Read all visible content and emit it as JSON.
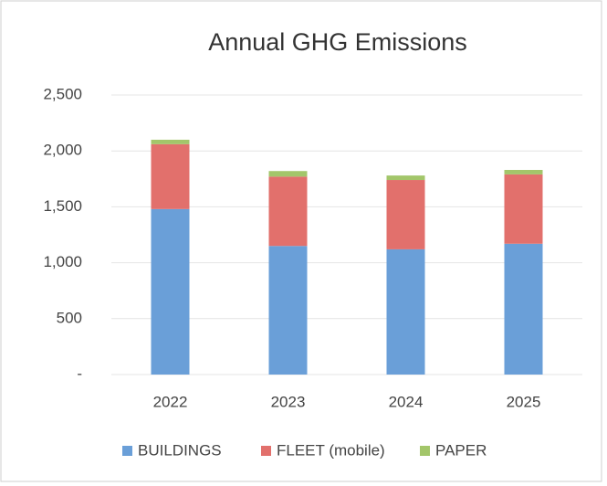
{
  "chart_data": {
    "type": "stacked_bar",
    "title": "Annual GHG Emissions",
    "categories": [
      "2022",
      "2023",
      "2024",
      "2025"
    ],
    "series": [
      {
        "name": "BUILDINGS",
        "color": "#6a9fd8",
        "values": [
          1480,
          1150,
          1120,
          1170
        ]
      },
      {
        "name": "FLEET (mobile)",
        "color": "#e2706c",
        "values": [
          580,
          620,
          620,
          620
        ]
      },
      {
        "name": "PAPER",
        "color": "#a3c66a",
        "values": [
          40,
          50,
          40,
          40
        ]
      }
    ],
    "ylim": [
      0,
      2500
    ],
    "yticks": [
      {
        "value": 0,
        "label": "-"
      },
      {
        "value": 500,
        "label": "500"
      },
      {
        "value": 1000,
        "label": "1,000"
      },
      {
        "value": 1500,
        "label": "1,500"
      },
      {
        "value": 2000,
        "label": "2,000"
      },
      {
        "value": 2500,
        "label": "2,500"
      }
    ],
    "grid": true,
    "legend": "bottom"
  }
}
